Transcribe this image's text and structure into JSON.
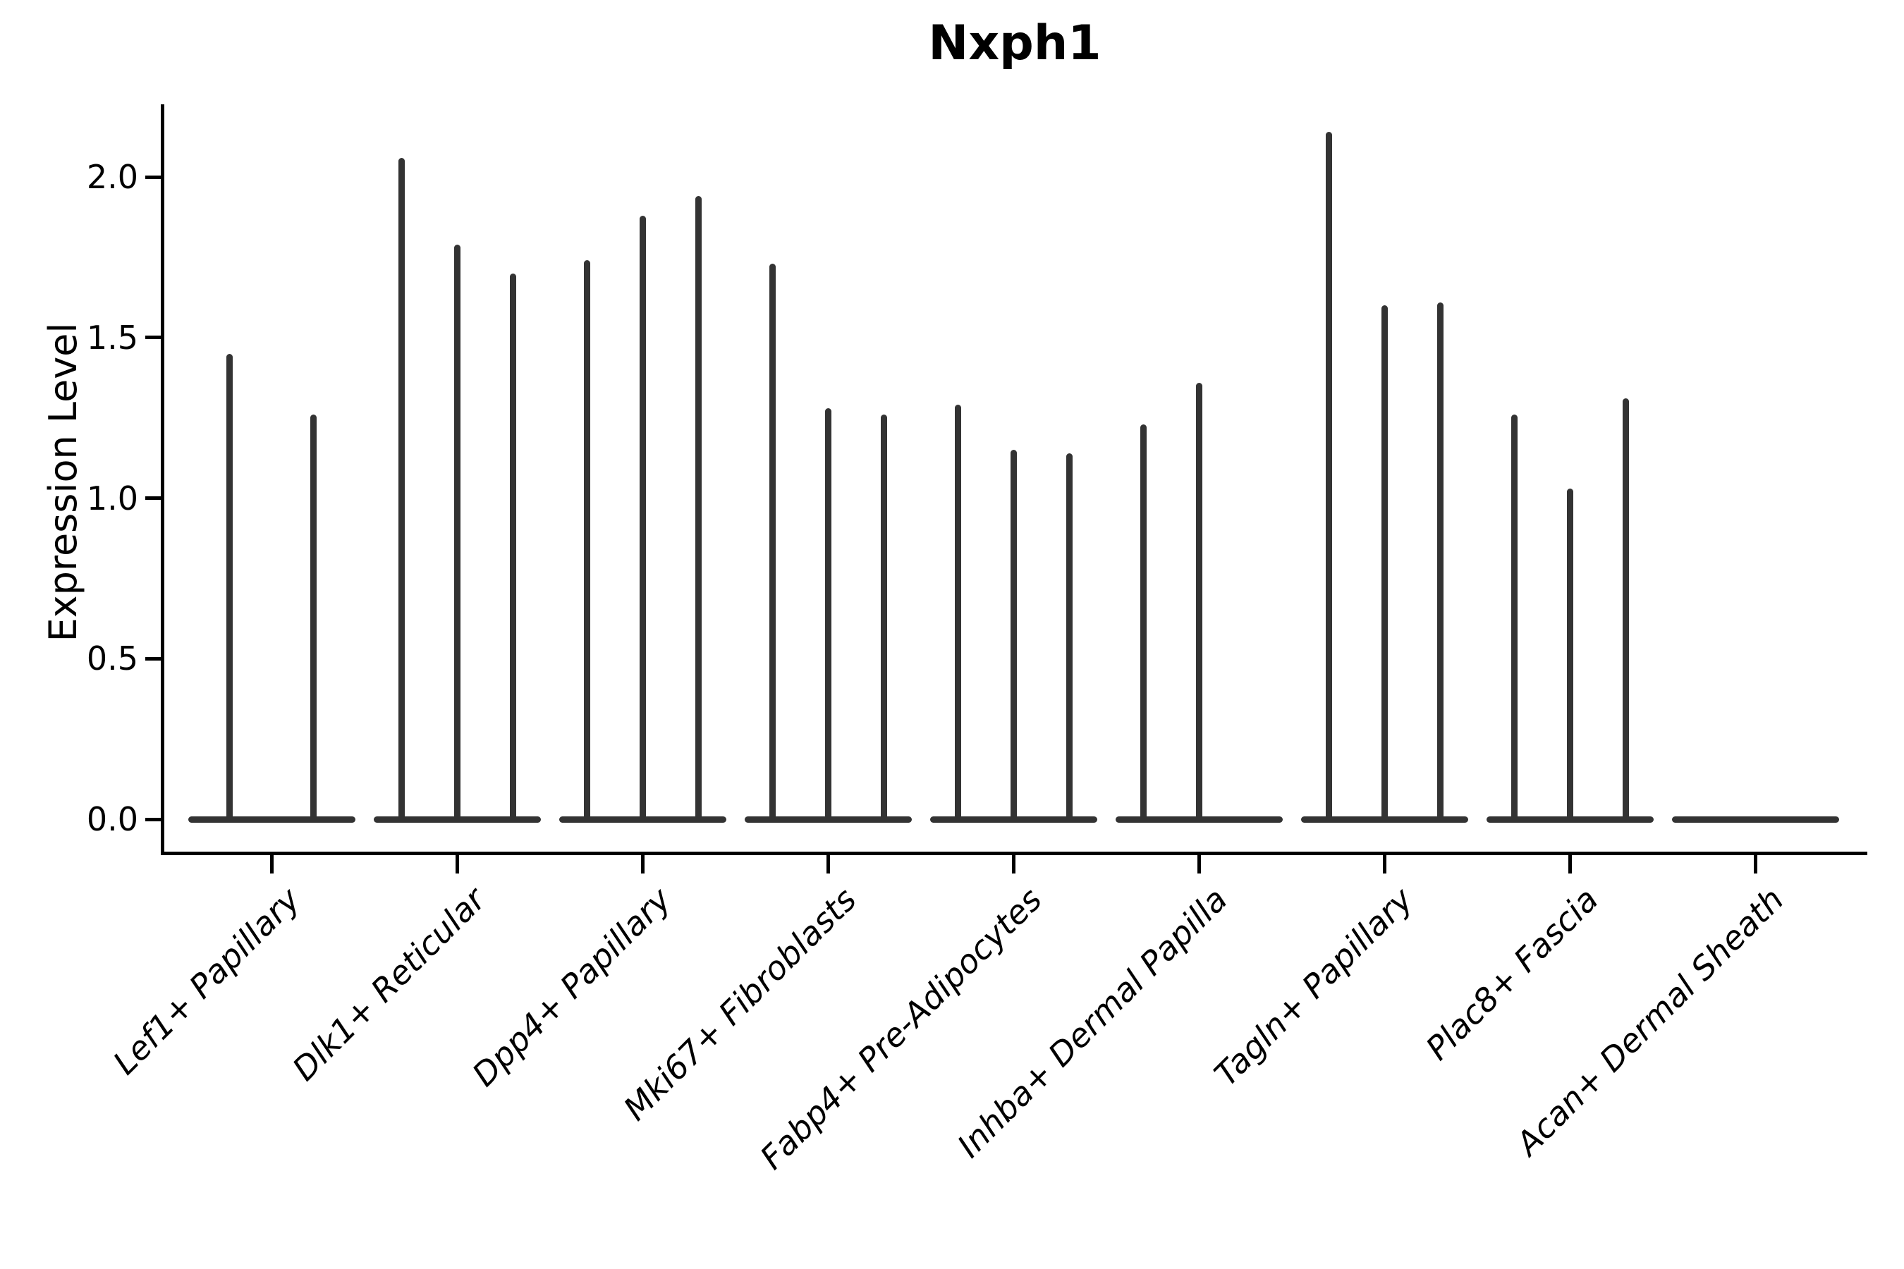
{
  "title": "Nxph1",
  "axes": {
    "ylabel": "Expression Level",
    "ytick_labels": [
      "0.0",
      "0.5",
      "1.0",
      "1.5",
      "2.0"
    ]
  },
  "chart_data": {
    "type": "violin",
    "title": "Nxph1",
    "xlabel": "",
    "ylabel": "Expression Level",
    "ylim": [
      -0.11,
      2.23
    ],
    "yticks": [
      0.0,
      0.5,
      1.0,
      1.5,
      2.0
    ],
    "grid": false,
    "legend": false,
    "categories": [
      "Lef1+ Papillary",
      "Dlk1+ Reticular",
      "Dpp4+ Papillary",
      "Mki67+ Fibroblasts",
      "Fabp4+ Pre-Adipocytes",
      "Inhba+ Dermal Papilla",
      "Tagln+ Papillary",
      "Plac8+ Fascia",
      "Acan+ Dermal Sheath"
    ],
    "groups": [
      {
        "category": "Lef1+ Papillary",
        "violin_max_values": [
          1.45,
          1.26
        ]
      },
      {
        "category": "Dlk1+ Reticular",
        "violin_max_values": [
          2.06,
          1.79,
          1.7
        ]
      },
      {
        "category": "Dpp4+ Papillary",
        "violin_max_values": [
          1.74,
          1.88,
          1.94
        ]
      },
      {
        "category": "Mki67+ Fibroblasts",
        "violin_max_values": [
          1.73,
          1.28,
          1.26
        ]
      },
      {
        "category": "Fabp4+ Pre-Adipocytes",
        "violin_max_values": [
          1.29,
          1.15,
          1.14
        ]
      },
      {
        "category": "Inhba+ Dermal Papilla",
        "violin_max_values": [
          1.23,
          1.36,
          0
        ]
      },
      {
        "category": "Tagln+ Papillary",
        "violin_max_values": [
          2.14,
          1.6,
          1.61
        ]
      },
      {
        "category": "Plac8+ Fascia",
        "violin_max_values": [
          1.26,
          1.03,
          1.31
        ]
      },
      {
        "category": "Acan+ Dermal Sheath",
        "violin_max_values": [
          0,
          0,
          0
        ]
      }
    ],
    "description": "Violin plot of Nxph1 expression; violins are nearly flat at 0 with thin spikes reaching the listed maxima (0 = completely flat violin).",
    "colors": {
      "violin": "#333333",
      "axis": "#000000",
      "text": "#000000",
      "background": "#ffffff"
    }
  }
}
